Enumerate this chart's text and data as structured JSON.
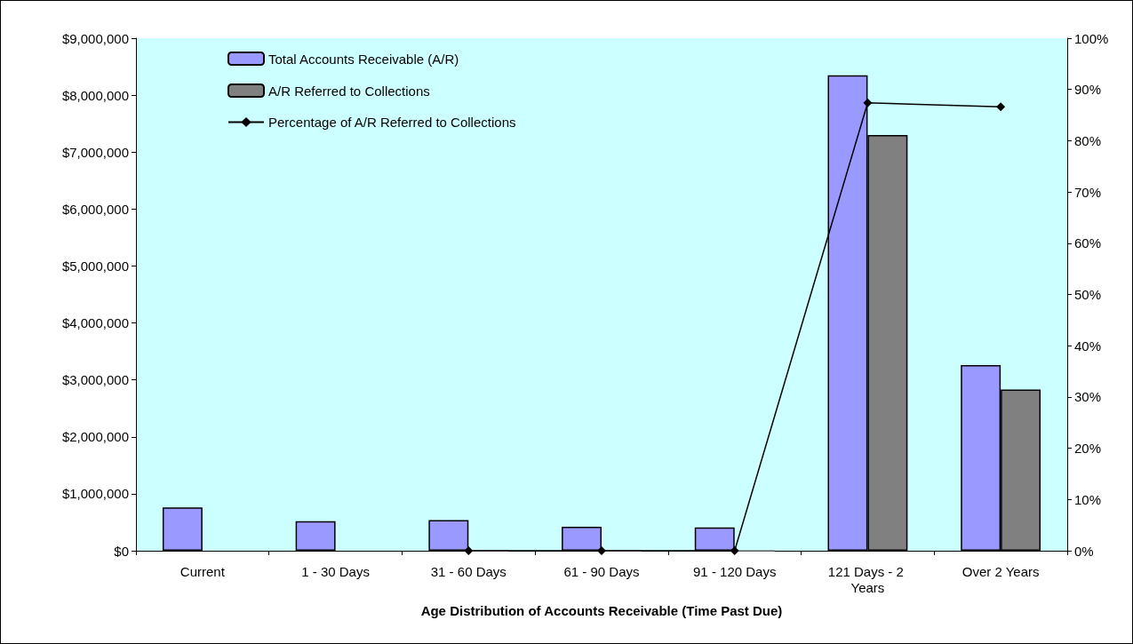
{
  "chart_data": {
    "type": "bar",
    "xlabel": "Age Distribution of Accounts Receivable (Time Past Due)",
    "categories": [
      "Current",
      "1 - 30 Days",
      "31 - 60 Days",
      "61 - 90 Days",
      "91 - 120 Days",
      "121 Days - 2 Years",
      "Over 2 Years"
    ],
    "series": [
      {
        "name": "Total Accounts Receivable (A/R)",
        "color": "#9999ff",
        "values": [
          760000,
          520000,
          540000,
          420000,
          410000,
          8350000,
          3260000
        ]
      },
      {
        "name": "A/R Referred to Collections",
        "color": "#808080",
        "values": [
          null,
          null,
          0,
          0,
          0,
          7300000,
          2830000
        ]
      },
      {
        "name": "Percentage of A/R Referred to Collections",
        "type": "line",
        "axis": "y2",
        "color": "#000000",
        "marker": "diamond",
        "values": [
          null,
          null,
          0,
          0,
          0,
          87.4,
          86.6
        ]
      }
    ],
    "ylim": [
      0,
      9000000
    ],
    "yticks": [
      {
        "value": 0,
        "label": "$0"
      },
      {
        "value": 1000000,
        "label": "$1,000,000"
      },
      {
        "value": 2000000,
        "label": "$2,000,000"
      },
      {
        "value": 3000000,
        "label": "$3,000,000"
      },
      {
        "value": 4000000,
        "label": "$4,000,000"
      },
      {
        "value": 5000000,
        "label": "$5,000,000"
      },
      {
        "value": 6000000,
        "label": "$6,000,000"
      },
      {
        "value": 7000000,
        "label": "$7,000,000"
      },
      {
        "value": 8000000,
        "label": "$8,000,000"
      },
      {
        "value": 9000000,
        "label": "$9,000,000"
      }
    ],
    "y2lim": [
      0,
      100
    ],
    "y2ticks": [
      {
        "value": 0,
        "label": "0%"
      },
      {
        "value": 10,
        "label": "10%"
      },
      {
        "value": 20,
        "label": "20%"
      },
      {
        "value": 30,
        "label": "30%"
      },
      {
        "value": 40,
        "label": "40%"
      },
      {
        "value": 50,
        "label": "50%"
      },
      {
        "value": 60,
        "label": "60%"
      },
      {
        "value": 70,
        "label": "70%"
      },
      {
        "value": 80,
        "label": "80%"
      },
      {
        "value": 90,
        "label": "90%"
      },
      {
        "value": 100,
        "label": "100%"
      }
    ],
    "grid": false,
    "legend": "top left"
  }
}
